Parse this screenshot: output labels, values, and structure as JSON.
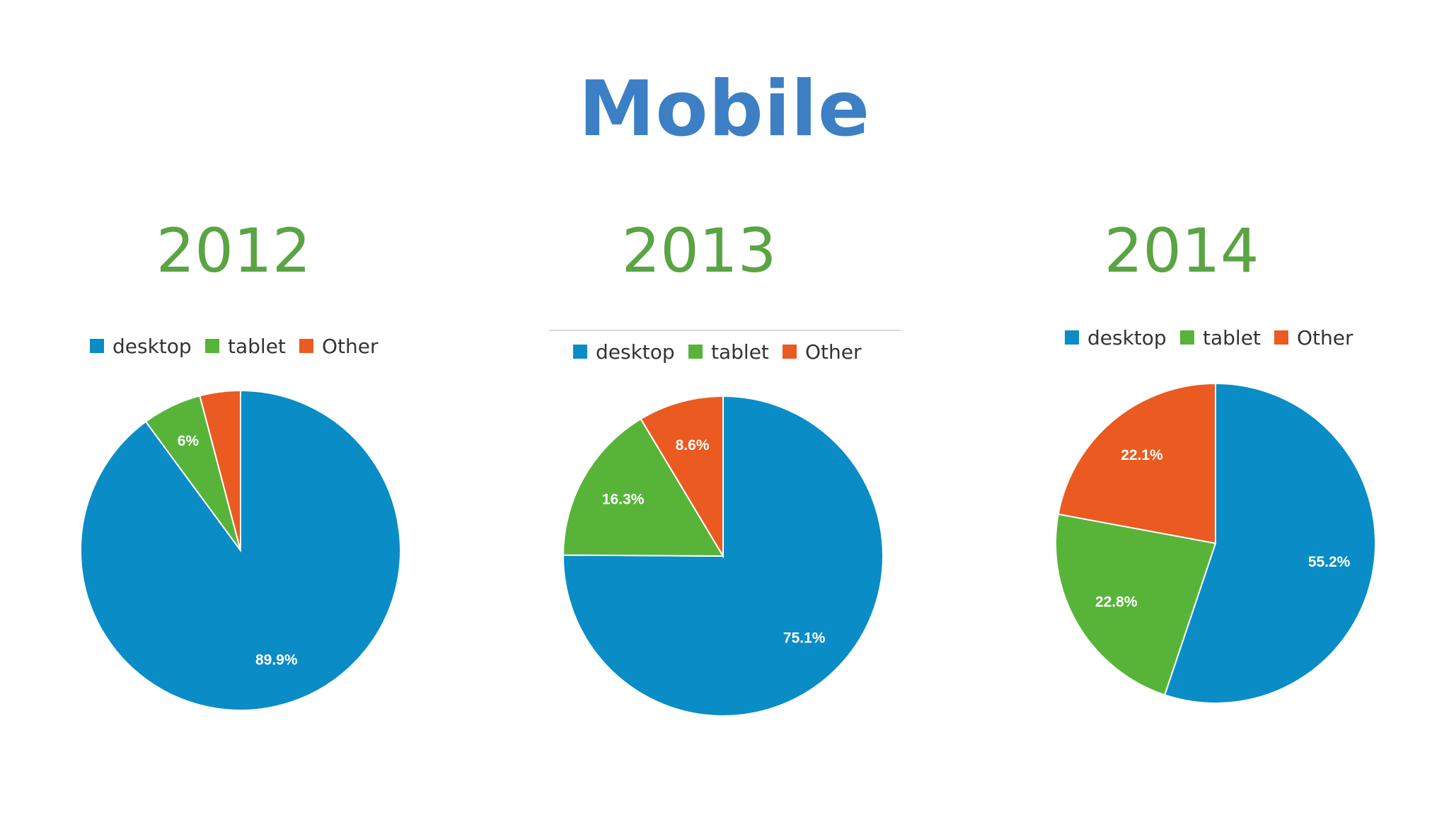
{
  "title": "Mobile",
  "colors": {
    "title": "#3d7fc4",
    "year": "#5aa443"
  },
  "chart_data": [
    {
      "type": "pie",
      "title": "2012",
      "legend_position": "top",
      "slices": [
        {
          "name": "desktop",
          "value": 89.9,
          "label": "89.9%",
          "color": "#0a8cc7"
        },
        {
          "name": "tablet",
          "value": 6.0,
          "label": "6%",
          "color": "#57b439"
        },
        {
          "name": "Other",
          "value": 4.1,
          "label": "",
          "color": "#ea5a21"
        }
      ]
    },
    {
      "type": "pie",
      "title": "2013",
      "legend_position": "top",
      "slices": [
        {
          "name": "desktop",
          "value": 75.1,
          "label": "75.1%",
          "color": "#0a8cc7"
        },
        {
          "name": "tablet",
          "value": 16.3,
          "label": "16.3%",
          "color": "#57b439"
        },
        {
          "name": "Other",
          "value": 8.6,
          "label": "8.6%",
          "color": "#ea5a21"
        }
      ]
    },
    {
      "type": "pie",
      "title": "2014",
      "legend_position": "top",
      "slices": [
        {
          "name": "desktop",
          "value": 55.2,
          "label": "55.2%",
          "color": "#0a8cc7"
        },
        {
          "name": "tablet",
          "value": 22.8,
          "label": "22.8%",
          "color": "#57b439"
        },
        {
          "name": "Other",
          "value": 22.1,
          "label": "22.1%",
          "color": "#ea5a21"
        }
      ]
    }
  ]
}
